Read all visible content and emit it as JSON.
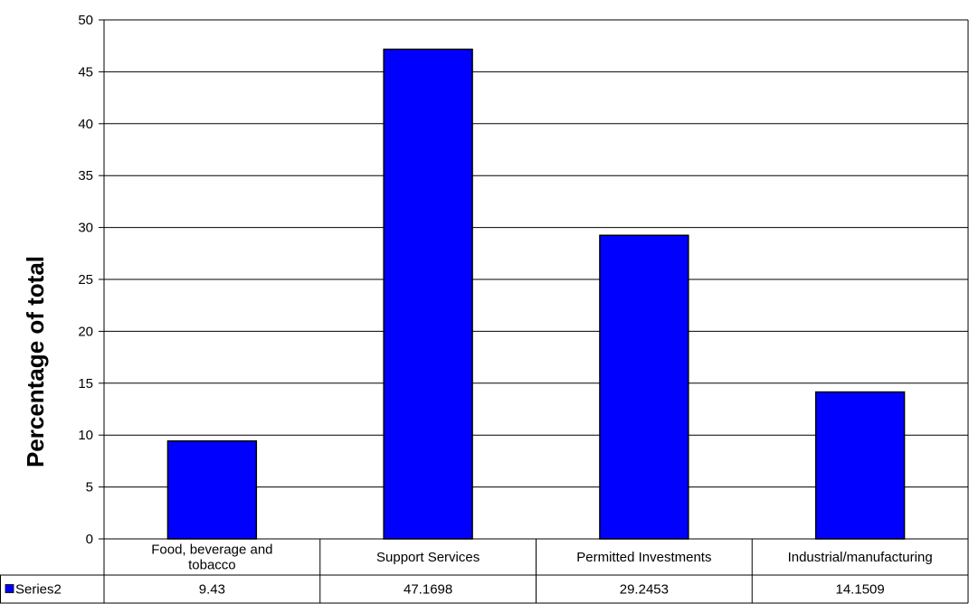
{
  "chart_data": {
    "type": "bar",
    "ylabel": "Percentage of total",
    "xlabel": "",
    "title": "",
    "categories": [
      "Food, beverage and tobacco",
      "Support Services",
      "Permitted Investments",
      "Industrial/manufacturing"
    ],
    "category_lines": [
      [
        "Food, beverage and",
        "tobacco"
      ],
      [
        "Support Services"
      ],
      [
        "Permitted Investments"
      ],
      [
        "Industrial/manufacturing"
      ]
    ],
    "series": [
      {
        "name": "Series2",
        "values": [
          9.43,
          47.1698,
          29.2453,
          14.1509
        ],
        "value_labels": [
          "9.43",
          "47.1698",
          "29.2453",
          "14.1509"
        ],
        "color": "#0000ff"
      }
    ],
    "ylim": [
      0,
      50
    ],
    "yticks": [
      "0",
      "5",
      "10",
      "15",
      "20",
      "25",
      "30",
      "35",
      "40",
      "45",
      "50"
    ],
    "grid": true,
    "data_table": true,
    "legend_placement": "data-table-left"
  }
}
